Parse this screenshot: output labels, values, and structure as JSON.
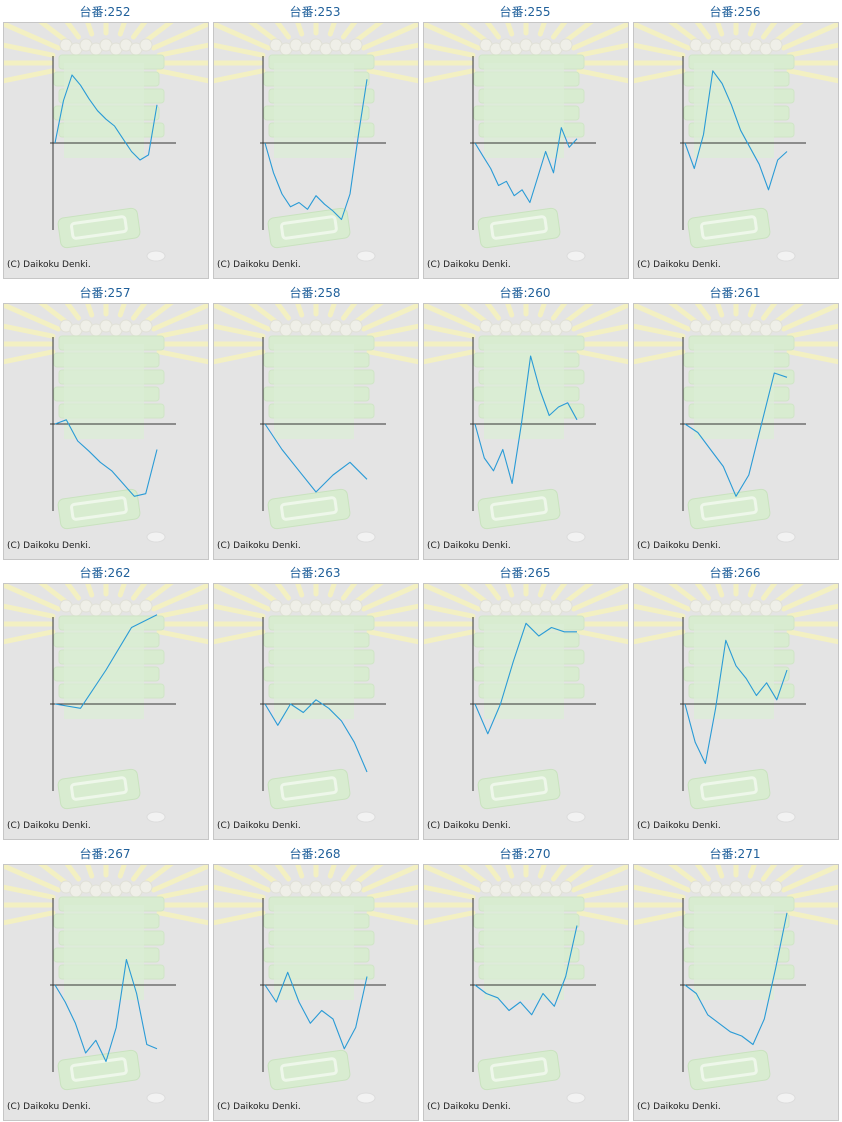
{
  "copyright": "(C) Daikoku Denki.",
  "colors": {
    "line": "#2a9bd6",
    "axis": "#333333",
    "panel_bg": "#e4e4e4",
    "title": "#1f5f9a"
  },
  "chart_data": [
    {
      "type": "line",
      "title": "台番:252",
      "y": [
        0.0,
        0.5,
        0.8,
        0.68,
        0.52,
        0.38,
        0.28,
        0.2,
        0.05,
        -0.1,
        -0.2,
        -0.14,
        0.45
      ]
    },
    {
      "type": "line",
      "title": "台番:253",
      "y": [
        0.0,
        -0.35,
        -0.6,
        -0.75,
        -0.7,
        -0.78,
        -0.62,
        -0.72,
        -0.8,
        -0.9,
        -0.6,
        0.1,
        0.75
      ]
    },
    {
      "type": "line",
      "title": "台番:255",
      "y": [
        0.0,
        -0.15,
        -0.3,
        -0.5,
        -0.45,
        -0.62,
        -0.55,
        -0.7,
        -0.4,
        -0.1,
        -0.35,
        0.18,
        -0.05,
        0.05
      ]
    },
    {
      "type": "line",
      "title": "台番:256",
      "y": [
        0.0,
        -0.3,
        0.1,
        0.85,
        0.7,
        0.45,
        0.15,
        -0.05,
        -0.25,
        -0.55,
        -0.2,
        -0.1
      ]
    },
    {
      "type": "line",
      "title": "台番:257",
      "y": [
        0.0,
        0.05,
        -0.2,
        -0.32,
        -0.45,
        -0.55,
        -0.7,
        -0.85,
        -0.82,
        -0.3
      ]
    },
    {
      "type": "line",
      "title": "台番:258",
      "y": [
        0.0,
        -0.3,
        -0.55,
        -0.8,
        -0.6,
        -0.45,
        -0.65
      ]
    },
    {
      "type": "line",
      "title": "台番:260",
      "y": [
        0.0,
        -0.4,
        -0.55,
        -0.3,
        -0.7,
        0.0,
        0.8,
        0.4,
        0.1,
        0.2,
        0.25,
        0.05
      ]
    },
    {
      "type": "line",
      "title": "台番:261",
      "y": [
        0.0,
        -0.1,
        -0.3,
        -0.5,
        -0.85,
        -0.6,
        0.0,
        0.6,
        0.55
      ]
    },
    {
      "type": "line",
      "title": "台番:262",
      "y": [
        0.0,
        -0.05,
        0.4,
        0.9,
        1.05
      ]
    },
    {
      "type": "line",
      "title": "台番:263",
      "y": [
        0.0,
        -0.25,
        0.0,
        -0.1,
        0.05,
        -0.05,
        -0.2,
        -0.45,
        -0.8
      ]
    },
    {
      "type": "line",
      "title": "台番:265",
      "y": [
        0.0,
        -0.35,
        0.0,
        0.5,
        0.95,
        0.8,
        0.9,
        0.85,
        0.85
      ]
    },
    {
      "type": "line",
      "title": "台番:266",
      "y": [
        0.0,
        -0.45,
        -0.7,
        -0.05,
        0.75,
        0.45,
        0.3,
        0.1,
        0.25,
        0.05,
        0.4
      ]
    },
    {
      "type": "line",
      "title": "台番:267",
      "y": [
        0.0,
        -0.2,
        -0.45,
        -0.8,
        -0.65,
        -0.9,
        -0.5,
        0.3,
        -0.1,
        -0.7,
        -0.75
      ]
    },
    {
      "type": "line",
      "title": "台番:268",
      "y": [
        0.0,
        -0.2,
        0.15,
        -0.2,
        -0.45,
        -0.3,
        -0.4,
        -0.75,
        -0.5,
        0.1
      ]
    },
    {
      "type": "line",
      "title": "台番:270",
      "y": [
        0.0,
        -0.1,
        -0.15,
        -0.3,
        -0.2,
        -0.35,
        -0.1,
        -0.25,
        0.1,
        0.7
      ]
    },
    {
      "type": "line",
      "title": "台番:271",
      "y": [
        0.0,
        -0.1,
        -0.35,
        -0.45,
        -0.55,
        -0.6,
        -0.7,
        -0.4,
        0.2,
        0.85
      ]
    }
  ]
}
